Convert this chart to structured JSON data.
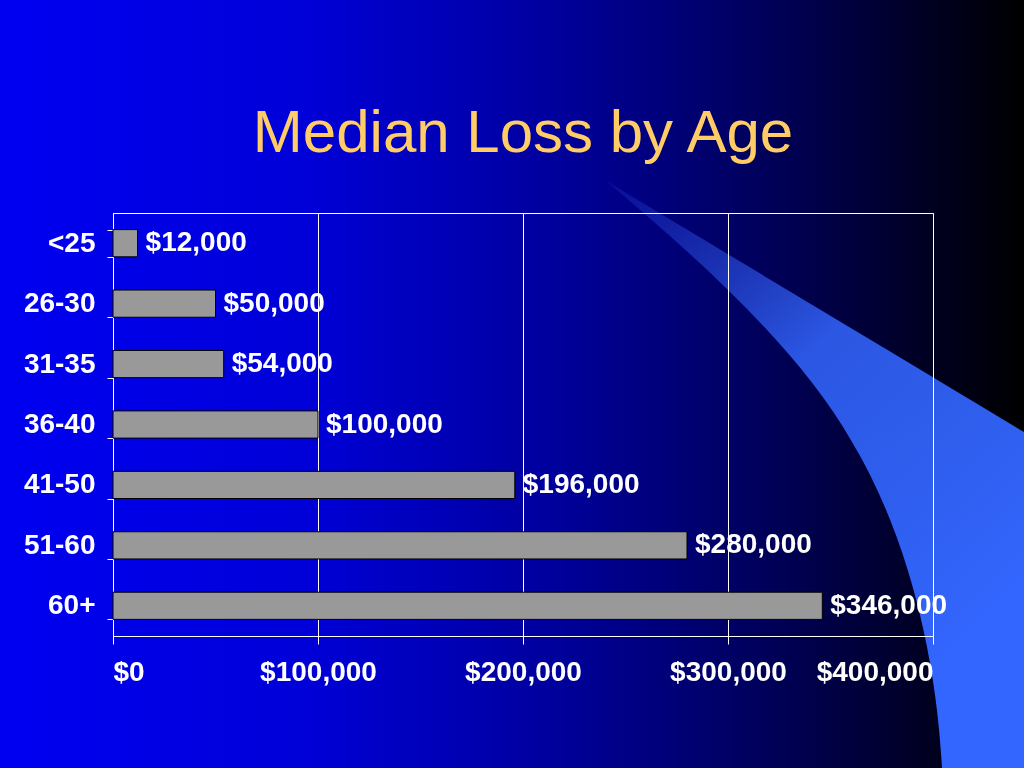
{
  "chart_data": {
    "type": "bar",
    "orientation": "horizontal",
    "title": "Median Loss by Age",
    "categories": [
      "<25",
      "26-30",
      "31-35",
      "36-40",
      "41-50",
      "51-60",
      "60+"
    ],
    "values": [
      12000,
      50000,
      54000,
      100000,
      196000,
      280000,
      346000
    ],
    "value_labels": [
      "$12,000",
      "$50,000",
      "$54,000",
      "$100,000",
      "$196,000",
      "$280,000",
      "$346,000"
    ],
    "color": "#999999",
    "xlim": [
      0,
      400000
    ],
    "xticks": [
      {
        "value": 0,
        "label": "$0"
      },
      {
        "value": 100000,
        "label": "$100,000"
      },
      {
        "value": 200000,
        "label": "$200,000"
      },
      {
        "value": 300000,
        "label": "$300,000"
      },
      {
        "value": 400000,
        "label": "$400,000"
      }
    ],
    "grid": "x"
  }
}
